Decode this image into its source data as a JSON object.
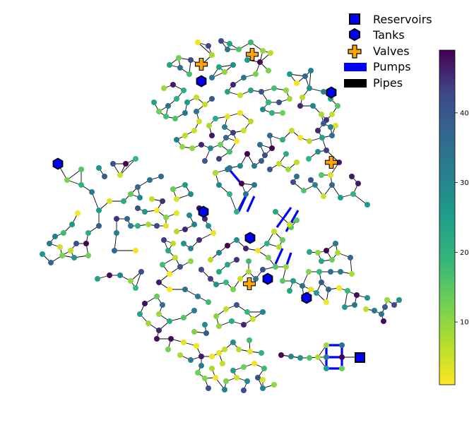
{
  "legend": {
    "items": [
      {
        "key": "reservoir",
        "label": "Reservoirs",
        "icon": "square-marker-icon"
      },
      {
        "key": "tank",
        "label": "Tanks",
        "icon": "hexagon-marker-icon"
      },
      {
        "key": "valve",
        "label": "Valves",
        "icon": "plus-marker-icon"
      },
      {
        "key": "pump",
        "label": "Pumps",
        "icon": "blue-bar-icon"
      },
      {
        "key": "pipe",
        "label": "Pipes",
        "icon": "black-bar-icon"
      }
    ]
  },
  "colorbar": {
    "colormap": "viridis_r",
    "range": [
      1,
      49
    ],
    "ticks": [
      10,
      20,
      30,
      40
    ]
  },
  "colors": {
    "reservoir": "#0000ff",
    "tank": "#0000ff",
    "valve": "#ffa500",
    "pump": "#0000ff",
    "pipe": "#000000",
    "outline": "#000000"
  }
}
